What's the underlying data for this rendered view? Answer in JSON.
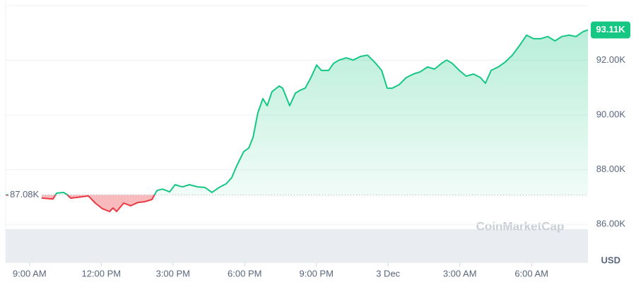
{
  "chart_data": {
    "type": "line",
    "x": [
      8.0,
      9.54,
      9.98,
      10.13,
      10.42,
      10.57,
      10.72,
      11.02,
      11.46,
      11.75,
      12.05,
      12.35,
      12.49,
      12.64,
      12.94,
      13.23,
      13.53,
      13.82,
      14.12,
      14.33,
      14.56,
      14.86,
      15.09,
      15.39,
      15.69,
      16.04,
      16.34,
      16.63,
      16.93,
      17.22,
      17.46,
      17.67,
      17.96,
      18.17,
      18.35,
      18.55,
      18.76,
      18.94,
      19.14,
      19.44,
      19.59,
      19.88,
      20.12,
      20.33,
      20.53,
      20.77,
      21.01,
      21.21,
      21.51,
      21.72,
      21.95,
      22.25,
      22.54,
      22.84,
      23.14,
      23.43,
      23.73,
      23.96,
      24.17,
      24.46,
      24.76,
      25.06,
      25.35,
      25.65,
      25.94,
      26.24,
      26.45,
      26.68,
      26.98,
      27.27,
      27.57,
      27.86,
      28.07,
      28.31,
      28.61,
      28.9,
      29.2,
      29.49,
      29.79,
      30.09,
      30.38,
      30.68,
      30.98,
      31.27,
      31.57,
      31.86,
      32.16,
      32.36
    ],
    "values": [
      87.08,
      86.96,
      86.93,
      87.14,
      87.17,
      87.09,
      86.96,
      86.99,
      87.04,
      86.78,
      86.57,
      86.47,
      86.6,
      86.47,
      86.78,
      86.68,
      86.8,
      86.83,
      86.91,
      87.24,
      87.29,
      87.19,
      87.45,
      87.37,
      87.45,
      87.37,
      87.35,
      87.17,
      87.35,
      87.48,
      87.71,
      88.15,
      88.66,
      88.79,
      89.18,
      90.08,
      90.6,
      90.34,
      90.85,
      91.06,
      90.98,
      90.34,
      90.8,
      90.91,
      90.98,
      91.37,
      91.83,
      91.63,
      91.63,
      91.89,
      92.01,
      92.09,
      92.01,
      92.14,
      92.19,
      91.94,
      91.63,
      90.98,
      90.98,
      91.11,
      91.37,
      91.5,
      91.58,
      91.76,
      91.68,
      91.89,
      92.01,
      91.89,
      91.63,
      91.42,
      91.5,
      91.37,
      91.16,
      91.63,
      91.76,
      91.94,
      92.19,
      92.53,
      92.92,
      92.79,
      92.79,
      92.87,
      92.71,
      92.87,
      92.92,
      92.87,
      93.05,
      93.11
    ],
    "color_up": "#16c784",
    "color_down": "#ea3943",
    "xlim": [
      8,
      32.36
    ],
    "xticks": [
      {
        "value": 9,
        "label": "9:00 AM"
      },
      {
        "value": 12,
        "label": "12:00 PM"
      },
      {
        "value": 15,
        "label": "3:00 PM"
      },
      {
        "value": 18,
        "label": "6:00 PM"
      },
      {
        "value": 21,
        "label": "9:00 PM"
      },
      {
        "value": 24,
        "label": "3 Dec"
      },
      {
        "value": 27,
        "label": "3:00 AM"
      },
      {
        "value": 30,
        "label": "6:00 AM"
      }
    ],
    "ylim": [
      85.8,
      94.0
    ],
    "yticks": [
      {
        "value": 86,
        "label": "86.00K"
      },
      {
        "value": 88,
        "label": "88.00K"
      },
      {
        "value": 90,
        "label": "90.00K"
      },
      {
        "value": 92,
        "label": "92.00K"
      }
    ],
    "y_unit": "USD",
    "reference": {
      "value": 87.08,
      "label": "87.08K"
    },
    "last_price": {
      "value": 93.11,
      "label": "93.11K"
    },
    "watermark": "CoinMarketCap",
    "grid": true
  }
}
